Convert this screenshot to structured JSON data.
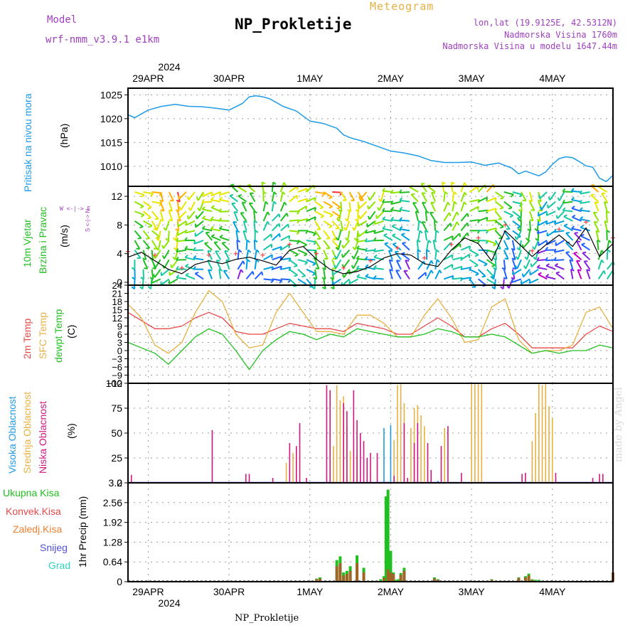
{
  "header": {
    "meteogram": "Meteogram",
    "model_label": "Model",
    "model_name": "wrf-nmm_v3.9.1  e1km",
    "title": "NP_Prokletije",
    "lonlat": "lon,lat (19.9125E, 42.5312N)",
    "altitude": "Nadmorska Visina 1760m",
    "model_altitude": "Nadmorska Visina u modelu 1647.44m",
    "year_top": "2024",
    "year_bottom": "2024",
    "footer": "NP_Prokletije",
    "credit": "made by Angel"
  },
  "dates": [
    "29APR",
    "30APR",
    "1MAY",
    "2MAY",
    "3MAY",
    "4MAY"
  ],
  "panel_labels": {
    "pressure": [
      "Pritisak na nivou mora",
      "(hPa)"
    ],
    "wind": [
      "10m Vjetar",
      "Brzina i Pravac",
      "(m/s)"
    ],
    "wind_rose": "W <-|-> E",
    "wind_rose_ns": "S <-|-> N",
    "temp": [
      "2m Temp",
      "SFC Temp",
      "dewpt Temp",
      "(C)"
    ],
    "cloud": [
      "Visoka Oblacnost",
      "Srednja Oblacnost",
      "Niska Oblacnost",
      "(%)"
    ],
    "precip_axis": "1hr Precip (mm)",
    "precip_legend": [
      "Ukupna Kisa",
      "Konvek.Kisa",
      "Zaledj.Kisa",
      "Snijeg",
      "Grad"
    ]
  },
  "colors": {
    "pressure": "#1e9be8",
    "temp2m": "#e84848",
    "sfc": "#e8b040",
    "dewpt": "#20c020",
    "cloud_high": "#1e9be8",
    "cloud_mid": "#e8b040",
    "cloud_low": "#d01880",
    "rain_total": "#20c020",
    "rain_conv": "#e84848",
    "rain_frz": "#f08030",
    "snow": "#5050e0",
    "hail": "#30d0c0"
  },
  "chart_data": [
    {
      "type": "line",
      "panel": "pressure",
      "ylabel": "(hPa)",
      "yticks": [
        1010,
        1015,
        1020,
        1025
      ],
      "ylim": [
        1005.8,
        1026.4
      ],
      "x_unit": "hours since 29APR 00:00",
      "xlim": [
        -6,
        138
      ],
      "series": [
        {
          "name": "Pritisak na nivou mora",
          "x": [
            -6,
            -4,
            -2,
            0,
            4,
            8,
            12,
            16,
            20,
            24,
            28,
            30,
            32,
            34,
            36,
            40,
            44,
            48,
            52,
            56,
            58,
            60,
            64,
            68,
            72,
            76,
            80,
            84,
            88,
            92,
            96,
            100,
            104,
            108,
            110,
            112,
            114,
            116,
            118,
            120,
            122,
            124,
            126,
            128,
            130,
            132,
            134,
            136,
            138
          ],
          "values": [
            1020.8,
            1020.2,
            1021.0,
            1021.8,
            1022.6,
            1023.0,
            1022.6,
            1022.5,
            1022.2,
            1021.8,
            1023.2,
            1024.6,
            1024.8,
            1024.6,
            1024.2,
            1022.6,
            1021.6,
            1019.5,
            1019.0,
            1018.0,
            1016.6,
            1016.0,
            1015.2,
            1014.2,
            1013.2,
            1012.8,
            1012.2,
            1011.2,
            1010.8,
            1010.8,
            1010.9,
            1010.2,
            1010.7,
            1009.6,
            1008.4,
            1009.0,
            1008.5,
            1008.0,
            1008.8,
            1010.4,
            1011.6,
            1012.0,
            1011.8,
            1011.0,
            1010.1,
            1009.8,
            1007.5,
            1006.8,
            1008.1
          ]
        }
      ]
    },
    {
      "type": "line",
      "panel": "wind",
      "ylabel": "(m/s)",
      "yticks": [
        0,
        4,
        8,
        12
      ],
      "ylim": [
        -0.4,
        13.4
      ],
      "xlim": [
        -6,
        138
      ],
      "series": [
        {
          "name": "10m Vjetar",
          "x": [
            -6,
            -2,
            2,
            6,
            10,
            14,
            18,
            22,
            26,
            30,
            34,
            38,
            42,
            46,
            50,
            54,
            58,
            62,
            66,
            70,
            74,
            78,
            82,
            86,
            90,
            94,
            98,
            102,
            106,
            110,
            114,
            118,
            122,
            126,
            130,
            134,
            138
          ],
          "values": [
            3.5,
            4.2,
            3.0,
            1.8,
            1.2,
            2.5,
            3.0,
            2.6,
            3.2,
            3.5,
            3.0,
            2.4,
            4.5,
            5.0,
            3.2,
            1.8,
            1.2,
            1.5,
            2.2,
            3.4,
            4.0,
            3.8,
            2.6,
            2.2,
            4.5,
            6.2,
            5.4,
            3.0,
            7.2,
            5.4,
            3.6,
            5.2,
            6.6,
            5.0,
            7.6,
            3.6,
            5.4
          ]
        }
      ],
      "wind_colors": [
        "#ff3030",
        "#ffb000",
        "#e6e600",
        "#8ce600",
        "#20c020",
        "#18c8a0",
        "#00a0e0",
        "#2060ff",
        "#8a20e0",
        "#c000c0"
      ]
    },
    {
      "type": "line",
      "panel": "temp",
      "ylabel": "(C)",
      "yticks": [
        -12,
        -9,
        -6,
        -3,
        0,
        3,
        6,
        9,
        12,
        15,
        18,
        21,
        24
      ],
      "ylim": [
        -12,
        24
      ],
      "xlim": [
        -6,
        138
      ],
      "series": [
        {
          "name": "2m Temp",
          "x": [
            -6,
            -2,
            2,
            6,
            10,
            14,
            18,
            22,
            26,
            30,
            34,
            38,
            42,
            46,
            50,
            54,
            58,
            62,
            66,
            70,
            74,
            78,
            82,
            86,
            90,
            94,
            98,
            102,
            106,
            110,
            114,
            118,
            122,
            126,
            130,
            134,
            138
          ],
          "values": [
            14,
            11,
            8,
            8,
            9,
            12,
            14,
            12,
            7,
            6,
            6,
            8,
            10,
            9,
            8,
            8,
            7,
            10,
            9,
            8,
            6,
            6,
            9,
            12,
            9,
            5,
            5,
            8,
            10,
            6,
            1,
            1,
            1,
            1,
            6,
            9,
            7
          ]
        },
        {
          "name": "SFC Temp",
          "x": [
            -6,
            -2,
            2,
            6,
            10,
            14,
            18,
            22,
            26,
            30,
            34,
            38,
            42,
            46,
            50,
            54,
            58,
            62,
            66,
            70,
            74,
            78,
            82,
            86,
            90,
            94,
            98,
            102,
            106,
            110,
            114,
            118,
            122,
            126,
            130,
            134,
            138
          ],
          "values": [
            17,
            12,
            2,
            -1,
            3,
            14,
            22,
            18,
            6,
            1,
            2,
            14,
            21,
            14,
            7,
            7,
            6,
            13,
            13,
            10,
            5,
            5,
            13,
            19,
            12,
            3,
            4,
            16,
            19,
            4,
            -1,
            0,
            0,
            2,
            14,
            16,
            8
          ]
        },
        {
          "name": "dewpt Temp",
          "x": [
            -6,
            -2,
            2,
            6,
            10,
            14,
            18,
            22,
            26,
            30,
            34,
            38,
            42,
            46,
            50,
            54,
            58,
            62,
            66,
            70,
            74,
            78,
            82,
            86,
            90,
            94,
            98,
            102,
            106,
            110,
            114,
            118,
            122,
            126,
            130,
            134,
            138
          ],
          "values": [
            3,
            1,
            -1,
            -5,
            0,
            5,
            8,
            6,
            0,
            -7,
            0,
            4,
            7,
            6,
            4,
            6,
            5,
            8,
            7,
            6,
            5,
            5,
            6,
            8,
            7,
            5,
            5,
            6,
            5,
            2,
            -1,
            0,
            -1,
            0,
            0,
            2,
            1
          ]
        }
      ]
    },
    {
      "type": "bar",
      "panel": "cloud",
      "ylabel": "(%)",
      "yticks": [
        0,
        25,
        50,
        75,
        100
      ],
      "ylim": [
        0,
        100
      ],
      "xlim": [
        -6,
        138
      ],
      "series": [
        {
          "name": "Visoka Oblacnost",
          "x": [
            70,
            72,
            74,
            84,
            86,
            88,
            114
          ],
          "values": [
            55,
            58,
            2,
            1,
            2,
            1,
            9
          ]
        },
        {
          "name": "Srednja Oblacnost",
          "x": [
            41,
            43,
            55,
            56,
            57,
            58,
            59,
            60,
            61,
            62,
            73,
            74,
            75,
            76,
            78,
            79,
            80,
            81,
            82,
            88,
            96,
            97,
            98,
            99,
            114,
            115,
            116,
            117,
            118,
            119,
            120,
            138
          ],
          "values": [
            20,
            30,
            37,
            98,
            83,
            87,
            57,
            32,
            28,
            28,
            43,
            98,
            99,
            80,
            55,
            75,
            78,
            68,
            57,
            55,
            99,
            99,
            99,
            99,
            42,
            70,
            99,
            98,
            99,
            77,
            65,
            27
          ]
        },
        {
          "name": "Niska Oblacnost",
          "x": [
            -5,
            19,
            29,
            30,
            37,
            42,
            44,
            45,
            47,
            53,
            54,
            58,
            59,
            61,
            62,
            63,
            64,
            65,
            66,
            68,
            73,
            76,
            77,
            79,
            80,
            83,
            84,
            87,
            89,
            93,
            111,
            112,
            121,
            132,
            134,
            135
          ],
          "values": [
            8,
            53,
            9,
            9,
            5,
            40,
            37,
            60,
            5,
            98,
            93,
            80,
            72,
            93,
            63,
            50,
            42,
            25,
            30,
            30,
            7,
            60,
            5,
            40,
            60,
            40,
            13,
            37,
            57,
            10,
            9,
            10,
            10,
            5,
            9,
            9
          ]
        }
      ]
    },
    {
      "type": "bar",
      "panel": "precip",
      "ylabel": "1hr Precip (mm)",
      "yticks": [
        0,
        0.64,
        1.28,
        1.92,
        2.56,
        3.2
      ],
      "ylim": [
        0,
        3.2
      ],
      "xlim": [
        -6,
        138
      ],
      "series": [
        {
          "name": "Ukupna Kisa",
          "x": [
            50,
            51,
            56,
            57,
            58,
            59,
            60,
            62,
            64,
            69,
            70,
            70.6,
            71.2,
            72,
            72.8,
            73.5,
            74.3,
            75,
            76,
            85,
            86,
            102,
            103,
            110,
            112,
            113,
            114,
            115,
            116
          ],
          "values": [
            0.1,
            0.14,
            0.7,
            0.82,
            0.3,
            0.35,
            0.5,
            0.85,
            0.45,
            0.08,
            0.18,
            2.76,
            2.98,
            1.0,
            0.3,
            0.06,
            0.08,
            0.28,
            0.45,
            0.14,
            0.08,
            0.08,
            0.02,
            0.14,
            0.18,
            0.26,
            0.08,
            0.06,
            0.06
          ]
        },
        {
          "name": "Konvek.Kisa",
          "x": [
            50,
            51,
            56,
            57,
            58,
            59,
            60,
            62,
            64,
            70,
            71.2,
            72,
            72.8,
            75,
            76,
            85,
            86,
            102,
            110,
            112,
            113,
            114,
            138
          ],
          "values": [
            0.08,
            0.1,
            0.5,
            0.6,
            0.2,
            0.25,
            0.35,
            0.6,
            0.3,
            0.12,
            0.4,
            0.3,
            0.25,
            0.22,
            0.35,
            0.1,
            0.06,
            0.06,
            0.12,
            0.14,
            0.2,
            0.06,
            0.3
          ]
        }
      ]
    }
  ]
}
